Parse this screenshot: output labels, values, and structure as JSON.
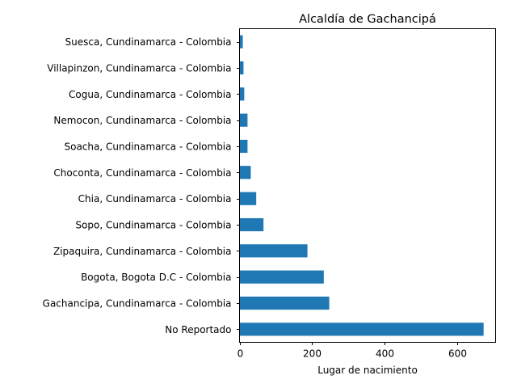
{
  "chart_data": {
    "type": "bar",
    "orientation": "horizontal",
    "title": "Alcaldía de Gachancipá",
    "xlabel": "Lugar de nacimiento",
    "ylabel": "",
    "xlim": [
      0,
      705
    ],
    "xticks": [
      0,
      200,
      400,
      600
    ],
    "grid": false,
    "color": "#1f77b4",
    "categories": [
      "No Reportado",
      "Gachancipa, Cundinamarca - Colombia",
      "Bogota, Bogota D.C - Colombia",
      "Zipaquira, Cundinamarca - Colombia",
      "Sopo, Cundinamarca - Colombia",
      "Chia, Cundinamarca - Colombia",
      "Choconta, Cundinamarca - Colombia",
      "Soacha, Cundinamarca - Colombia",
      "Nemocon, Cundinamarca - Colombia",
      "Cogua, Cundinamarca - Colombia",
      "Villapinzon, Cundinamarca - Colombia",
      "Suesca, Cundinamarca - Colombia"
    ],
    "values": [
      672,
      247,
      232,
      187,
      66,
      46,
      31,
      22,
      22,
      13,
      11,
      9
    ]
  }
}
